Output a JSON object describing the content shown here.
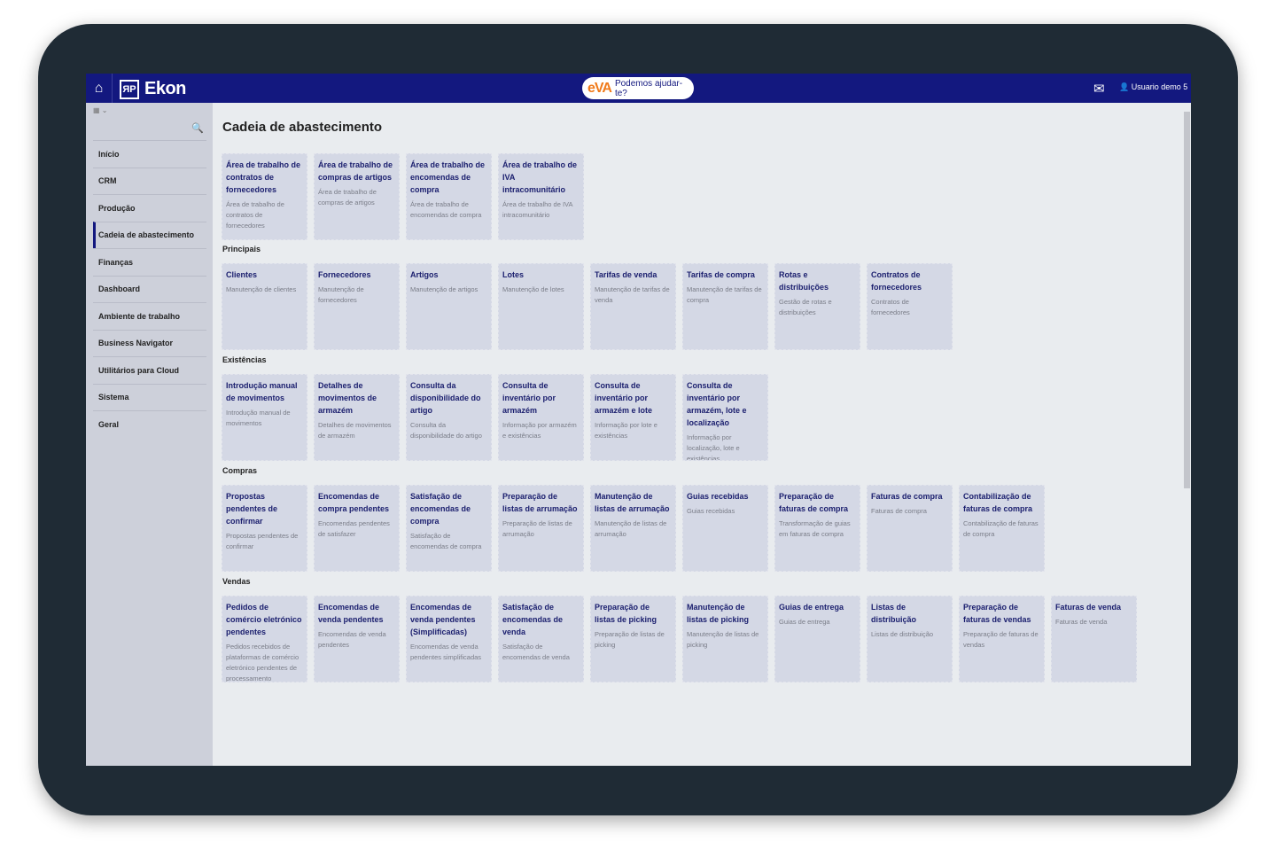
{
  "header": {
    "logo": "Ekon",
    "logo_mark": "ЯP",
    "eva_logo": "eVA",
    "eva_text": "Podemos ajudar-te?",
    "user": "Usuario demo 5"
  },
  "sidebar": {
    "items": [
      {
        "label": "Início"
      },
      {
        "label": "CRM"
      },
      {
        "label": "Produção"
      },
      {
        "label": "Cadeia de abastecimento",
        "active": true
      },
      {
        "label": "Finanças"
      },
      {
        "label": "Dashboard"
      },
      {
        "label": "Ambiente de trabalho"
      },
      {
        "label": "Business Navigator"
      },
      {
        "label": "Utilitários para Cloud"
      },
      {
        "label": "Sistema"
      },
      {
        "label": "Geral"
      }
    ]
  },
  "main": {
    "title": "Cadeia de abastecimento",
    "sections": [
      {
        "label": "",
        "tiles": [
          {
            "title": "Área de trabalho de contratos de fornecedores",
            "desc": "Área de trabalho de contratos de fornecedores"
          },
          {
            "title": "Área de trabalho de compras de artigos",
            "desc": "Área de trabalho de compras de artigos"
          },
          {
            "title": "Área de trabalho de encomendas de compra",
            "desc": "Área de trabalho de encomendas de compra"
          },
          {
            "title": "Área de trabalho de IVA intracomunitário",
            "desc": "Área de trabalho de IVA intracomunitário"
          }
        ]
      },
      {
        "label": "Principais",
        "tiles": [
          {
            "title": "Clientes",
            "desc": "Manutenção de clientes"
          },
          {
            "title": "Fornecedores",
            "desc": "Manutenção de fornecedores"
          },
          {
            "title": "Artigos",
            "desc": "Manutenção de artigos"
          },
          {
            "title": "Lotes",
            "desc": "Manutenção de lotes"
          },
          {
            "title": "Tarifas de venda",
            "desc": "Manutenção de tarifas de venda"
          },
          {
            "title": "Tarifas de compra",
            "desc": "Manutenção de tarifas de compra"
          },
          {
            "title": "Rotas e distribuições",
            "desc": "Gestão de rotas e distribuições"
          },
          {
            "title": "Contratos de fornecedores",
            "desc": "Contratos de fornecedores"
          }
        ]
      },
      {
        "label": "Existências",
        "tiles": [
          {
            "title": "Introdução manual de movimentos",
            "desc": "Introdução manual de movimentos"
          },
          {
            "title": "Detalhes de movimentos de armazém",
            "desc": "Detalhes de movimentos de armazém"
          },
          {
            "title": "Consulta da disponibilidade do artigo",
            "desc": "Consulta da disponibilidade do artigo"
          },
          {
            "title": "Consulta de inventário por armazém",
            "desc": "Informação por armazém e existências"
          },
          {
            "title": "Consulta de inventário por armazém e lote",
            "desc": "Informação por lote e existências"
          },
          {
            "title": "Consulta de inventário por armazém, lote e localização",
            "desc": "Informação por localização, lote e existências"
          }
        ]
      },
      {
        "label": "Compras",
        "tiles": [
          {
            "title": "Propostas pendentes de confirmar",
            "desc": "Propostas pendentes de confirmar"
          },
          {
            "title": "Encomendas de compra pendentes",
            "desc": "Encomendas pendentes de satisfazer"
          },
          {
            "title": "Satisfação de encomendas de compra",
            "desc": "Satisfação de encomendas de compra"
          },
          {
            "title": "Preparação de listas de arrumação",
            "desc": "Preparação de listas de arrumação"
          },
          {
            "title": "Manutenção de listas de arrumação",
            "desc": "Manutenção de listas de arrumação"
          },
          {
            "title": "Guias recebidas",
            "desc": "Guias recebidas"
          },
          {
            "title": "Preparação de faturas de compra",
            "desc": "Transformação de guias em faturas de compra"
          },
          {
            "title": "Faturas de compra",
            "desc": "Faturas de compra"
          },
          {
            "title": "Contabilização de faturas de compra",
            "desc": "Contabilização de faturas de compra"
          }
        ]
      },
      {
        "label": "Vendas",
        "tiles": [
          {
            "title": "Pedidos de comércio eletrónico pendentes",
            "desc": "Pedidos recebidos de plataformas de comércio eletrónico pendentes de processamento"
          },
          {
            "title": "Encomendas de venda pendentes",
            "desc": "Encomendas de venda pendentes"
          },
          {
            "title": "Encomendas de venda pendentes (Simplificadas)",
            "desc": "Encomendas de venda pendentes simplificadas"
          },
          {
            "title": "Satisfação de encomendas de venda",
            "desc": "Satisfação de encomendas de venda"
          },
          {
            "title": "Preparação de listas de picking",
            "desc": "Preparação de listas de picking"
          },
          {
            "title": "Manutenção de listas de picking",
            "desc": "Manutenção de listas de picking"
          },
          {
            "title": "Guias de entrega",
            "desc": "Guias de entrega"
          },
          {
            "title": "Listas de distribuição",
            "desc": "Listas de distribuição"
          },
          {
            "title": "Preparação de faturas de vendas",
            "desc": "Preparação de faturas de vendas"
          },
          {
            "title": "Faturas de venda",
            "desc": "Faturas de venda"
          }
        ]
      }
    ]
  },
  "colors": {
    "header": "#13187f",
    "tile": "#d4d8e5",
    "tile_title": "#1c206f",
    "eva": "#f07a1a"
  }
}
